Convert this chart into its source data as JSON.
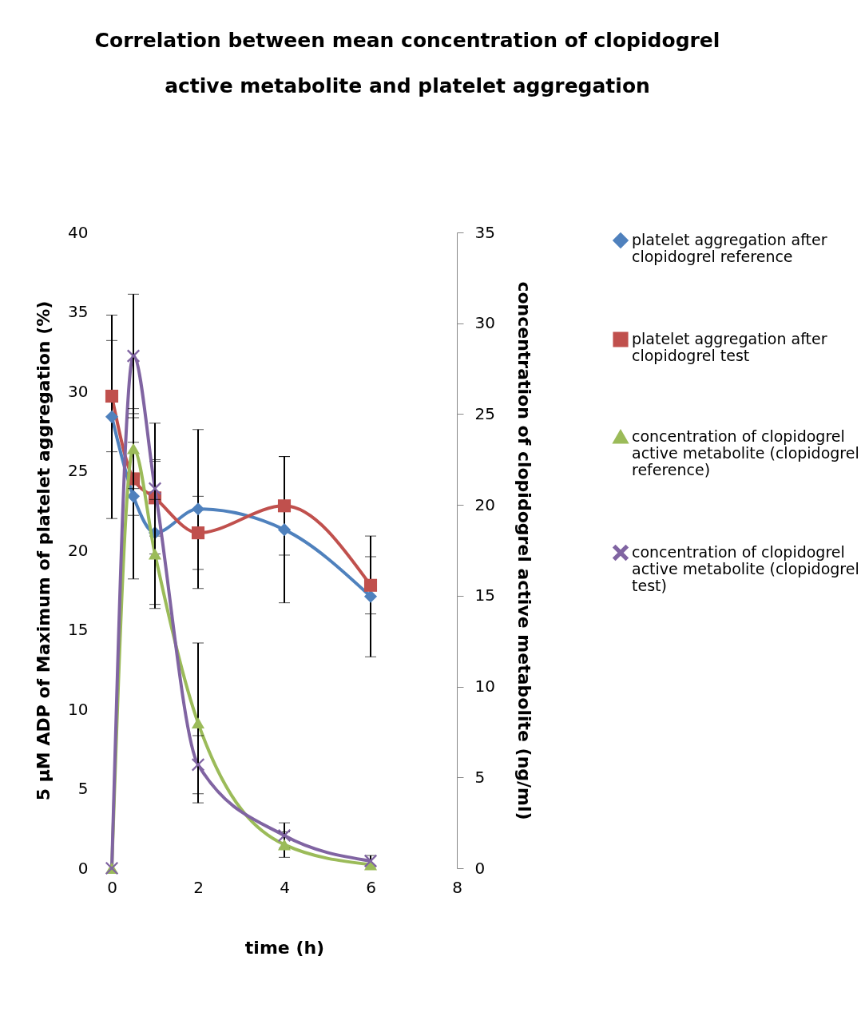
{
  "chart_data": {
    "type": "line",
    "title": "Correlation between mean concentration of clopidogrel active metabolite and platelet aggregation",
    "xlabel": "time (h)",
    "ylabel": "5 µM  ADP of Maximum of platelet aggregation (%)",
    "y2label": "concentration of clopidogrel active metabolite (ng/ml)",
    "x": [
      0,
      0.5,
      1,
      2,
      4,
      6
    ],
    "series": [
      {
        "name": "platelet aggregation after clopidogrel reference",
        "color": "#4f81bd",
        "marker": "diamond",
        "values": [
          28.4,
          23.4,
          21.1,
          22.6,
          21.3,
          17.1
        ],
        "errors": [
          6.4,
          5.2,
          4.5,
          5.0,
          4.6,
          3.8
        ]
      },
      {
        "name": "platelet aggregation after clopidogrel test",
        "color": "#c0504d",
        "marker": "square",
        "values": [
          29.7,
          24.5,
          23.3,
          21.1,
          22.8,
          17.8
        ],
        "errors": [
          3.5,
          2.3,
          2.4,
          2.3,
          3.1,
          1.8
        ]
      },
      {
        "name": "concentration of clopidogrel active metabolite (clopidogrel reference)",
        "color": "#9bbb59",
        "marker": "triangle",
        "axis": "y2",
        "values": [
          0,
          23.1,
          17.3,
          8.0,
          1.3,
          0.2
        ],
        "errors": [
          null,
          2.2,
          3.0,
          4.4,
          0.7,
          null
        ]
      },
      {
        "name": "concentration of clopidogrel active metabolite (clopidogrel test)",
        "color": "#8064a2",
        "marker": "cross",
        "axis": "y2",
        "values": [
          0,
          28.2,
          20.9,
          5.7,
          1.8,
          0.4
        ],
        "errors": [
          null,
          3.4,
          3.6,
          1.6,
          0.7,
          0.3
        ]
      }
    ],
    "xlim": [
      0,
      8
    ],
    "xticks": [
      0,
      2,
      4,
      6,
      8
    ],
    "ylim": [
      0,
      40
    ],
    "yticks": [
      0,
      5,
      10,
      15,
      20,
      25,
      30,
      35,
      40
    ],
    "y2lim": [
      0,
      35
    ],
    "y2ticks": [
      0,
      5,
      10,
      15,
      20,
      25,
      30,
      35
    ],
    "legend": "right",
    "grid": false,
    "line_style": "solid"
  }
}
